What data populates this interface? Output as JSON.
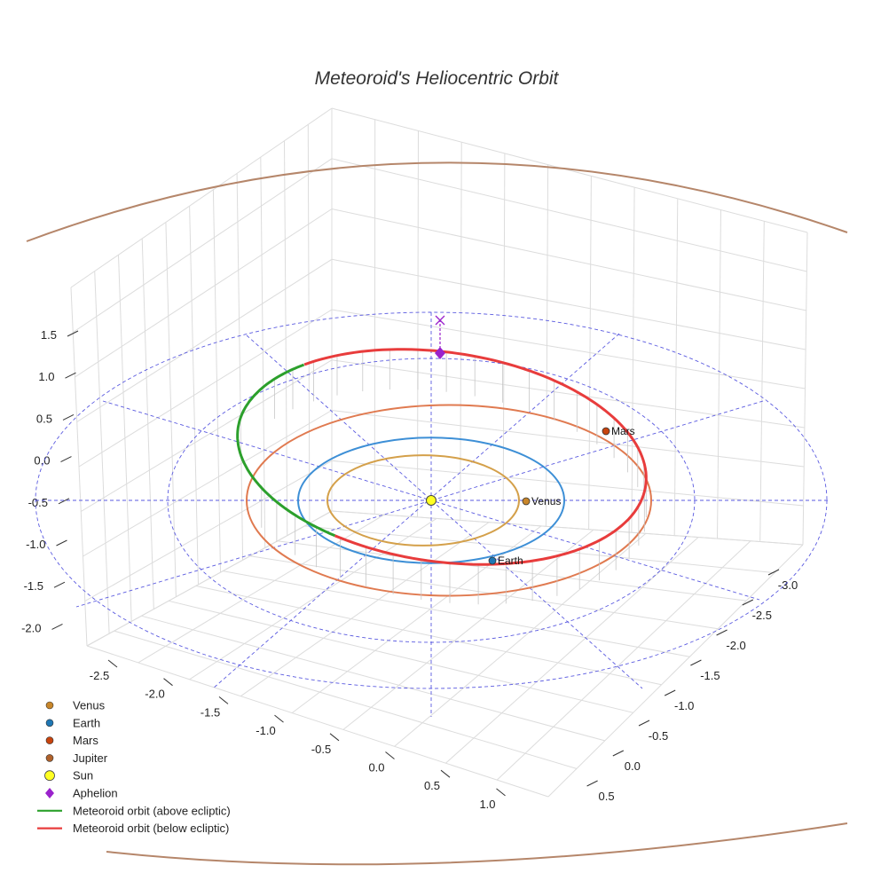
{
  "chart_data": {
    "type": "line",
    "title": "Meteoroid's Heliocentric Orbit",
    "axes": {
      "x_ticks": [
        "-2.5",
        "-2.0",
        "-1.5",
        "-1.0",
        "-0.5",
        "0.0",
        "0.5",
        "1.0"
      ],
      "y_ticks": [
        "-3.0",
        "-2.5",
        "-2.0",
        "-1.5",
        "-1.0",
        "-0.5",
        "0.0",
        "0.5"
      ],
      "z_ticks": [
        "1.5",
        "1.0",
        "0.5",
        "0.0",
        "-0.5",
        "-1.0",
        "-1.5",
        "-2.0"
      ],
      "xlim": [
        -2.8,
        1.2
      ],
      "ylim": [
        -3.2,
        0.7
      ],
      "zlim": [
        -2.2,
        1.8
      ],
      "grid": true
    },
    "planets": [
      {
        "name": "Venus",
        "orbit_radius_au": 0.72,
        "color": "#d4a04a",
        "marker_color": "#c8862a"
      },
      {
        "name": "Earth",
        "orbit_radius_au": 1.0,
        "color": "#3d8fd6",
        "marker_color": "#1f77b4"
      },
      {
        "name": "Mars",
        "orbit_radius_au": 1.52,
        "color": "#e07a50",
        "marker_color": "#c8440e"
      },
      {
        "name": "Jupiter",
        "orbit_radius_au": 5.2,
        "color": "#b5866a",
        "marker_color": "#b0612a"
      }
    ],
    "sun": {
      "name": "Sun",
      "color": "#ffff22"
    },
    "aphelion": {
      "name": "Aphelion",
      "color": "#9a22cc"
    },
    "meteoroid_orbit": {
      "semi_major_axis_au": 1.9,
      "eccentricity": 0.46,
      "above_color": "#2ca02c",
      "below_color": "#e83c3c"
    },
    "legend": {
      "position": "bottom-left",
      "entries": [
        {
          "label": "Venus",
          "kind": "dot",
          "color": "#c8862a"
        },
        {
          "label": "Earth",
          "kind": "dot",
          "color": "#1f77b4"
        },
        {
          "label": "Mars",
          "kind": "dot",
          "color": "#c8440e"
        },
        {
          "label": "Jupiter",
          "kind": "dot",
          "color": "#b0612a"
        },
        {
          "label": "Sun",
          "kind": "sun",
          "color": "#ffff22"
        },
        {
          "label": "Aphelion",
          "kind": "diamond",
          "color": "#9a22cc"
        },
        {
          "label": "Meteoroid orbit (above ecliptic)",
          "kind": "line",
          "color": "#2ca02c"
        },
        {
          "label": "Meteoroid orbit (below ecliptic)",
          "kind": "line",
          "color": "#e83c3c"
        }
      ]
    }
  }
}
